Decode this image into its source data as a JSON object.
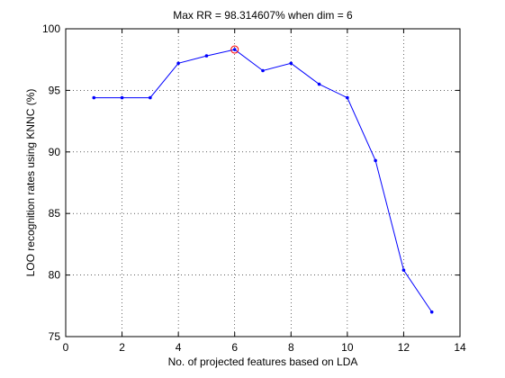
{
  "chart_data": {
    "type": "line",
    "title": "Max RR = 98.314607% when dim = 6",
    "xlabel": "No. of projected features based on LDA",
    "ylabel": "LOO recognition rates using KNNC (%)",
    "xlim": [
      0,
      14
    ],
    "ylim": [
      75,
      100
    ],
    "xticks": [
      0,
      2,
      4,
      6,
      8,
      10,
      12,
      14
    ],
    "yticks": [
      75,
      80,
      85,
      90,
      95,
      100
    ],
    "grid": true,
    "line_color": "#0000ff",
    "highlight_color": "#ff0000",
    "x": [
      1,
      2,
      3,
      4,
      5,
      6,
      7,
      8,
      9,
      10,
      11,
      12,
      13
    ],
    "y": [
      94.4,
      94.4,
      94.4,
      97.2,
      97.8,
      98.3146,
      96.6,
      97.2,
      95.5,
      94.4,
      89.3,
      80.4,
      77.0
    ],
    "highlight": {
      "x": 6,
      "y": 98.314607
    }
  }
}
